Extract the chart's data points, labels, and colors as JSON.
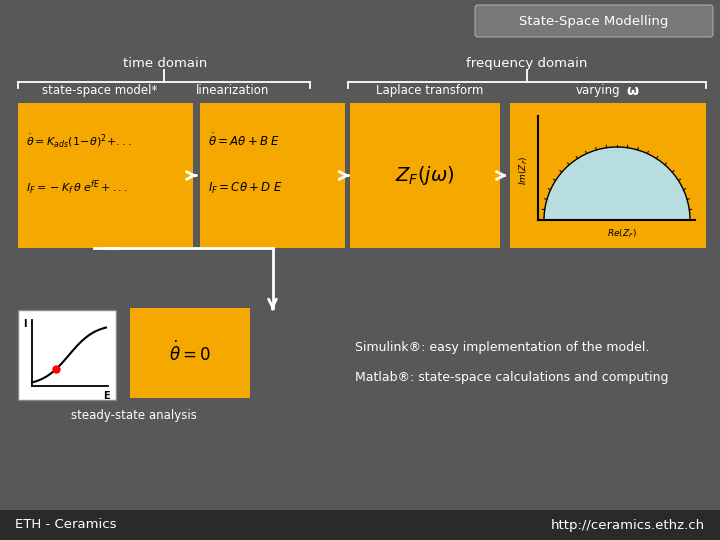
{
  "bg_color": "#585858",
  "title_box_color": "#787878",
  "title_text": "State-Space Modelling",
  "yellow_color": "#F5A800",
  "white_color": "#ffffff",
  "black_color": "#000000",
  "light_blue": "#b8dde0",
  "footer_bg": "#2a2a2a",
  "footer_left": "ETH - Ceramics",
  "footer_right": "http://ceramics.ethz.ch",
  "label_time_domain": "time domain",
  "label_freq_domain": "frequency domain",
  "label_state_space": "state-space model*",
  "label_linearization": "linearization",
  "label_laplace": "Laplace transform",
  "label_varying": "varying",
  "steady_label": "steady-state analysis",
  "simulink_text": "Simulink®: easy implementation of the model.",
  "matlab_text": "Matlab®: state-space calculations and computing"
}
